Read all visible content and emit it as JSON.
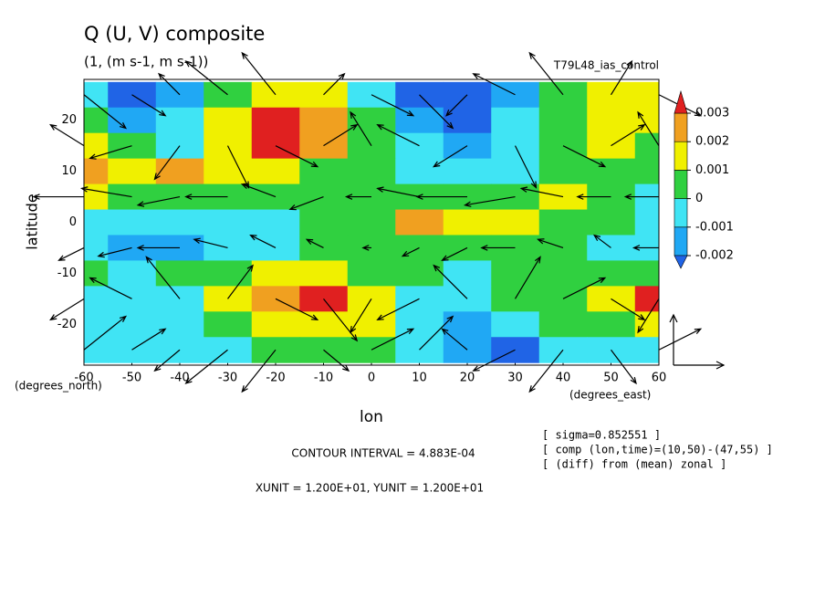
{
  "chart_data": {
    "type": "contour",
    "title": "Q (U, V) composite",
    "subtitle": "(1, (m s-1, m s-1))",
    "experiment": "T79L48_ias_control",
    "x_label": "lon",
    "y_label": "latitude",
    "y_units": "(degrees_north)",
    "x_units": "(degrees_east)",
    "contour_interval": "CONTOUR INTERVAL = 4.883E-04",
    "vector_units": "XUNIT = 1.200E+01, YUNIT = 1.200E+01",
    "info": [
      "[ sigma=0.852551 ]",
      "[ comp (lon,time)=(10,50)-(47,55) ]",
      "[ (diff) from (mean) zonal ]"
    ],
    "xlim": [
      -60,
      60
    ],
    "ylim": [
      -28,
      28
    ],
    "xticks": [
      -60,
      -50,
      -40,
      -30,
      -20,
      -10,
      0,
      10,
      20,
      30,
      40,
      50,
      60
    ],
    "yticks": [
      -20,
      -10,
      0,
      10,
      20
    ],
    "x": [
      -60,
      -50,
      -40,
      -30,
      -20,
      -10,
      0,
      10,
      20,
      30,
      40,
      50,
      60
    ],
    "y": [
      25,
      20,
      15,
      10,
      5,
      0,
      -5,
      -10,
      -15,
      -20,
      -25
    ],
    "values": [
      [
        -0.001,
        -0.0025,
        -0.0015,
        0.0005,
        0.0015,
        0.001,
        -0.001,
        -0.0025,
        -0.0025,
        -0.0015,
        0.0005,
        0.0015,
        0.001
      ],
      [
        0,
        -0.002,
        -0.001,
        0.001,
        0.0032,
        0.0025,
        0,
        -0.002,
        -0.0025,
        -0.001,
        0.0005,
        0.0015,
        0.001
      ],
      [
        0.0015,
        0,
        -0.0005,
        0.0015,
        0.003,
        0.002,
        0.0005,
        -0.001,
        -0.0015,
        -0.0005,
        0.0005,
        0.001,
        0.0005
      ],
      [
        0.0025,
        0.0015,
        0.002,
        0.001,
        0.0015,
        0.0005,
        0.0005,
        -0.0005,
        -0.001,
        -0.0005,
        0.0005,
        0,
        0
      ],
      [
        0.001,
        0.0005,
        0.0005,
        0,
        0,
        0,
        0.0005,
        0,
        0.0005,
        0.0005,
        0.001,
        0,
        -0.0005
      ],
      [
        -0.0005,
        -0.001,
        -0.0005,
        -0.0005,
        -0.0005,
        0,
        0.0005,
        0.002,
        0.001,
        0.0015,
        0.0005,
        0,
        -0.0005
      ],
      [
        -0.001,
        -0.002,
        -0.0015,
        -0.001,
        -0.0005,
        0,
        0.0005,
        0.0005,
        0.0005,
        0,
        0,
        -0.0005,
        -0.001
      ],
      [
        0,
        -0.0005,
        0,
        0.0005,
        0.001,
        0.001,
        0.0005,
        0,
        -0.0005,
        0.0005,
        0.0005,
        0,
        0
      ],
      [
        -0.001,
        -0.001,
        -0.0005,
        0.001,
        0.0025,
        0.0032,
        0.0015,
        -0.0005,
        -0.001,
        0,
        0.0005,
        0.0015,
        0.003
      ],
      [
        -0.001,
        -0.001,
        -0.0005,
        0,
        0.0015,
        0.0015,
        0.001,
        -0.001,
        -0.0015,
        -0.001,
        0.0005,
        0.0005,
        0.001
      ],
      [
        -0.0005,
        -0.0005,
        -0.0005,
        -0.0005,
        0,
        0.0005,
        0.0005,
        -0.001,
        -0.002,
        -0.0025,
        -0.001,
        -0.0005,
        -0.0005
      ]
    ],
    "levels": [
      -0.002,
      -0.001,
      0,
      0.001,
      0.002,
      0.003
    ],
    "colors": [
      "#2064e6",
      "#20a8f4",
      "#40e4f4",
      "#30d040",
      "#f0f000",
      "#f0a020",
      "#e02020"
    ],
    "vector_unit": 12,
    "vector_y": [
      25,
      15,
      5,
      -5,
      -15,
      -25
    ],
    "u": [
      [
        10,
        8,
        -5,
        -10,
        -8,
        5,
        10,
        8,
        -5,
        -10,
        -8,
        5,
        10
      ],
      [
        -8,
        -10,
        -6,
        5,
        10,
        8,
        -5,
        -10,
        -8,
        5,
        10,
        8,
        -5
      ],
      [
        -12,
        -12,
        -10,
        -10,
        -8,
        -8,
        -6,
        -10,
        -12,
        -12,
        -10,
        -8,
        -8
      ],
      [
        -6,
        -8,
        -10,
        -8,
        -6,
        -4,
        -2,
        -4,
        -6,
        -8,
        -6,
        -4,
        -6
      ],
      [
        -8,
        -10,
        -8,
        6,
        10,
        8,
        -5,
        -10,
        -8,
        6,
        10,
        8,
        -5
      ],
      [
        10,
        8,
        -6,
        -10,
        -8,
        6,
        10,
        8,
        -6,
        -10,
        -8,
        6,
        10
      ]
    ],
    "v": [
      [
        -8,
        -5,
        5,
        8,
        10,
        5,
        -5,
        -8,
        -5,
        5,
        10,
        8,
        -5
      ],
      [
        5,
        -3,
        -8,
        -10,
        -5,
        5,
        8,
        5,
        -5,
        -10,
        -5,
        5,
        8
      ],
      [
        0,
        2,
        -2,
        0,
        3,
        -3,
        0,
        2,
        0,
        -2,
        2,
        0,
        0
      ],
      [
        -3,
        -2,
        0,
        2,
        3,
        2,
        0,
        -2,
        -3,
        0,
        2,
        3,
        0
      ],
      [
        -5,
        5,
        10,
        8,
        -5,
        -10,
        -8,
        -5,
        8,
        10,
        5,
        -5,
        -8
      ],
      [
        8,
        5,
        -5,
        -8,
        -10,
        -5,
        5,
        8,
        5,
        -5,
        -10,
        -8,
        5
      ]
    ]
  }
}
